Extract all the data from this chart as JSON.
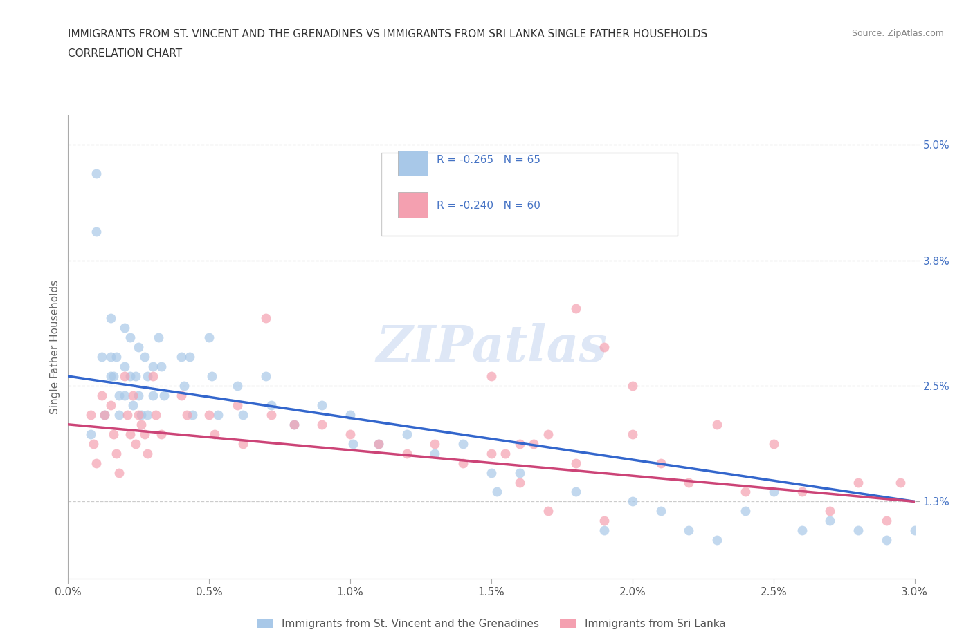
{
  "title_line1": "IMMIGRANTS FROM ST. VINCENT AND THE GRENADINES VS IMMIGRANTS FROM SRI LANKA SINGLE FATHER HOUSEHOLDS",
  "title_line2": "CORRELATION CHART",
  "source": "Source: ZipAtlas.com",
  "ylabel": "Single Father Households",
  "legend_label1": "Immigrants from St. Vincent and the Grenadines",
  "legend_label2": "Immigrants from Sri Lanka",
  "r1": -0.265,
  "n1": 65,
  "r2": -0.24,
  "n2": 60,
  "color1": "#a8c8e8",
  "color2": "#f4a0b0",
  "trendline1_color": "#3366cc",
  "trendline2_color": "#cc4477",
  "xlim": [
    0.0,
    0.03
  ],
  "ylim": [
    0.005,
    0.053
  ],
  "xticks": [
    0.0,
    0.005,
    0.01,
    0.015,
    0.02,
    0.025,
    0.03
  ],
  "xticklabels": [
    "0.0%",
    "0.5%",
    "1.0%",
    "1.5%",
    "2.0%",
    "2.5%",
    "3.0%"
  ],
  "ytick_positions": [
    0.013,
    0.025,
    0.038,
    0.05
  ],
  "ytick_labels": [
    "1.3%",
    "2.5%",
    "3.8%",
    "5.0%"
  ],
  "watermark": "ZIPatlas",
  "scatter1_x": [
    0.0008,
    0.001,
    0.001,
    0.0012,
    0.0013,
    0.0015,
    0.0015,
    0.0015,
    0.0016,
    0.0017,
    0.0018,
    0.0018,
    0.002,
    0.002,
    0.002,
    0.0022,
    0.0022,
    0.0023,
    0.0024,
    0.0025,
    0.0025,
    0.0026,
    0.0027,
    0.0028,
    0.0028,
    0.003,
    0.003,
    0.0032,
    0.0033,
    0.0034,
    0.004,
    0.0041,
    0.0043,
    0.0044,
    0.005,
    0.0051,
    0.0053,
    0.006,
    0.0062,
    0.007,
    0.0072,
    0.008,
    0.009,
    0.01,
    0.0101,
    0.011,
    0.012,
    0.013,
    0.014,
    0.015,
    0.0152,
    0.016,
    0.018,
    0.019,
    0.02,
    0.021,
    0.022,
    0.023,
    0.024,
    0.025,
    0.026,
    0.027,
    0.028,
    0.029,
    0.03
  ],
  "scatter1_y": [
    0.02,
    0.047,
    0.041,
    0.028,
    0.022,
    0.032,
    0.028,
    0.026,
    0.026,
    0.028,
    0.024,
    0.022,
    0.031,
    0.027,
    0.024,
    0.03,
    0.026,
    0.023,
    0.026,
    0.029,
    0.024,
    0.022,
    0.028,
    0.026,
    0.022,
    0.027,
    0.024,
    0.03,
    0.027,
    0.024,
    0.028,
    0.025,
    0.028,
    0.022,
    0.03,
    0.026,
    0.022,
    0.025,
    0.022,
    0.026,
    0.023,
    0.021,
    0.023,
    0.022,
    0.019,
    0.019,
    0.02,
    0.018,
    0.019,
    0.016,
    0.014,
    0.016,
    0.014,
    0.01,
    0.013,
    0.012,
    0.01,
    0.009,
    0.012,
    0.014,
    0.01,
    0.011,
    0.01,
    0.009,
    0.01
  ],
  "scatter2_x": [
    0.0008,
    0.0009,
    0.001,
    0.0012,
    0.0013,
    0.0015,
    0.0016,
    0.0017,
    0.0018,
    0.002,
    0.0021,
    0.0022,
    0.0023,
    0.0024,
    0.0025,
    0.0026,
    0.0027,
    0.0028,
    0.003,
    0.0031,
    0.0033,
    0.004,
    0.0042,
    0.005,
    0.0052,
    0.006,
    0.0062,
    0.007,
    0.0072,
    0.008,
    0.009,
    0.01,
    0.011,
    0.012,
    0.013,
    0.014,
    0.015,
    0.016,
    0.017,
    0.018,
    0.019,
    0.02,
    0.021,
    0.022,
    0.023,
    0.024,
    0.025,
    0.026,
    0.027,
    0.028,
    0.029,
    0.0295,
    0.018,
    0.019,
    0.02,
    0.015,
    0.0155,
    0.016,
    0.0165,
    0.017
  ],
  "scatter2_y": [
    0.022,
    0.019,
    0.017,
    0.024,
    0.022,
    0.023,
    0.02,
    0.018,
    0.016,
    0.026,
    0.022,
    0.02,
    0.024,
    0.019,
    0.022,
    0.021,
    0.02,
    0.018,
    0.026,
    0.022,
    0.02,
    0.024,
    0.022,
    0.022,
    0.02,
    0.023,
    0.019,
    0.032,
    0.022,
    0.021,
    0.021,
    0.02,
    0.019,
    0.018,
    0.019,
    0.017,
    0.018,
    0.019,
    0.02,
    0.017,
    0.011,
    0.02,
    0.017,
    0.015,
    0.021,
    0.014,
    0.019,
    0.014,
    0.012,
    0.015,
    0.011,
    0.015,
    0.033,
    0.029,
    0.025,
    0.026,
    0.018,
    0.015,
    0.019,
    0.012
  ]
}
